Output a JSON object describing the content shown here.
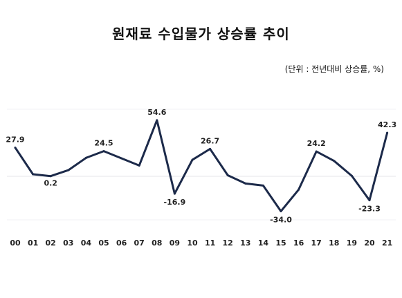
{
  "title": "원재료 수입물가 상승률 추이",
  "unit_note": "(단위 : 전년대비 상승률, %)",
  "chart_data": {
    "type": "line",
    "title": "원재료 수입물가 상승률 추이",
    "xlabel": "",
    "ylabel": "",
    "x": [
      "00",
      "01",
      "02",
      "03",
      "04",
      "05",
      "06",
      "07",
      "08",
      "09",
      "10",
      "11",
      "12",
      "13",
      "14",
      "15",
      "16",
      "17",
      "18",
      "19",
      "20",
      "21"
    ],
    "series": [
      {
        "values": [
          27.9,
          2.0,
          0.2,
          6.0,
          18.0,
          24.5,
          17.5,
          10.5,
          54.6,
          -16.9,
          16.0,
          26.7,
          1.0,
          -7.0,
          -9.0,
          -34.0,
          -13.0,
          24.2,
          15.0,
          0.5,
          -23.3,
          42.3
        ]
      }
    ],
    "data_labels": [
      {
        "index": 0,
        "text": "27.9"
      },
      {
        "index": 2,
        "text": "0.2"
      },
      {
        "index": 5,
        "text": "24.5"
      },
      {
        "index": 8,
        "text": "54.6"
      },
      {
        "index": 9,
        "text": "-16.9"
      },
      {
        "index": 11,
        "text": "26.7"
      },
      {
        "index": 15,
        "text": "-34.0"
      },
      {
        "index": 17,
        "text": "24.2"
      },
      {
        "index": 20,
        "text": "-23.3"
      },
      {
        "index": 21,
        "text": "42.3"
      }
    ],
    "ylim": [
      -45,
      70
    ],
    "grid": false,
    "line_color": "#1c2a4a"
  }
}
